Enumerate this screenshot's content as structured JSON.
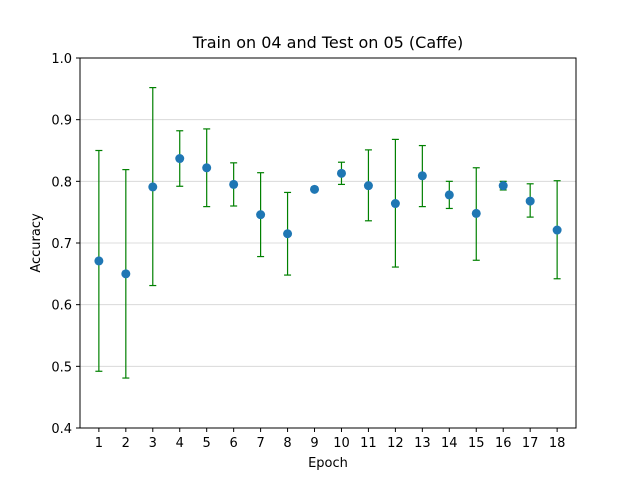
{
  "chart_data": {
    "type": "scatter",
    "title": "Train on 04 and Test on 05 (Caffe)",
    "xlabel": "Epoch",
    "ylabel": "Accuracy",
    "ylim": [
      0.4,
      1.0
    ],
    "xlim": [
      0.3,
      18.7
    ],
    "grid": "horizontal",
    "x_ticks": [
      "1",
      "2",
      "3",
      "4",
      "5",
      "6",
      "7",
      "8",
      "9",
      "10",
      "11",
      "12",
      "13",
      "14",
      "15",
      "16",
      "17",
      "18"
    ],
    "y_ticks": [
      "0.4",
      "0.5",
      "0.6",
      "0.7",
      "0.8",
      "0.9",
      "1.0"
    ],
    "series": [
      {
        "x": [
          1,
          2,
          3,
          4,
          5,
          6,
          7,
          8,
          9,
          10,
          11,
          12,
          13,
          14,
          15,
          16,
          17,
          18
        ],
        "y": [
          0.671,
          0.65,
          0.791,
          0.837,
          0.822,
          0.795,
          0.746,
          0.715,
          0.787,
          0.813,
          0.793,
          0.764,
          0.809,
          0.778,
          0.748,
          0.793,
          0.768,
          0.721
        ],
        "err_low": [
          0.492,
          0.481,
          0.631,
          0.792,
          0.759,
          0.76,
          0.678,
          0.648,
          0.787,
          0.795,
          0.736,
          0.661,
          0.759,
          0.756,
          0.672,
          0.786,
          0.742,
          0.642
        ],
        "err_high": [
          0.85,
          0.819,
          0.952,
          0.882,
          0.885,
          0.83,
          0.814,
          0.782,
          0.787,
          0.831,
          0.851,
          0.868,
          0.858,
          0.8,
          0.822,
          0.8,
          0.796,
          0.801
        ]
      }
    ],
    "colors": {
      "marker": "#1f77b4",
      "errorbar": "#008000",
      "grid": "#d3d3d3"
    }
  }
}
